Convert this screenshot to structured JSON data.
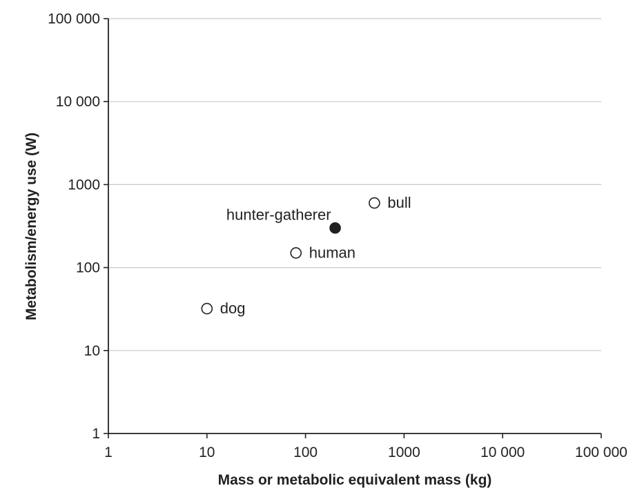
{
  "chart_data": {
    "type": "scatter",
    "title": "",
    "xlabel": "Mass or metabolic equivalent mass (kg)",
    "ylabel": "Metabolism/energy use (W)",
    "x_scale": "log",
    "y_scale": "log",
    "xlim": [
      1,
      100000
    ],
    "ylim": [
      1,
      100000
    ],
    "grid": {
      "horizontal": true,
      "vertical": false
    },
    "legend": "none",
    "x_ticks": [
      {
        "value": 1,
        "label": "1"
      },
      {
        "value": 10,
        "label": "10"
      },
      {
        "value": 100,
        "label": "100"
      },
      {
        "value": 1000,
        "label": "1000"
      },
      {
        "value": 10000,
        "label": "10 000"
      },
      {
        "value": 100000,
        "label": "100 000"
      }
    ],
    "y_ticks": [
      {
        "value": 1,
        "label": "1"
      },
      {
        "value": 10,
        "label": "10"
      },
      {
        "value": 100,
        "label": "100"
      },
      {
        "value": 1000,
        "label": "1000"
      },
      {
        "value": 10000,
        "label": "10 000"
      },
      {
        "value": 100000,
        "label": "100 000"
      }
    ],
    "points": [
      {
        "label": "dog",
        "x": 10,
        "y": 32,
        "filled": false,
        "label_position": "right"
      },
      {
        "label": "human",
        "x": 80,
        "y": 150,
        "filled": false,
        "label_position": "right"
      },
      {
        "label": "bull",
        "x": 500,
        "y": 600,
        "filled": false,
        "label_position": "right"
      },
      {
        "label": "hunter-gatherer",
        "x": 200,
        "y": 300,
        "filled": true,
        "label_position": "above-left"
      }
    ],
    "colors": {
      "axis": "#231f20",
      "grid": "#c8c8c8",
      "marker_stroke": "#231f20",
      "marker_open_fill": "#ffffff",
      "marker_filled_fill": "#231f20"
    }
  }
}
